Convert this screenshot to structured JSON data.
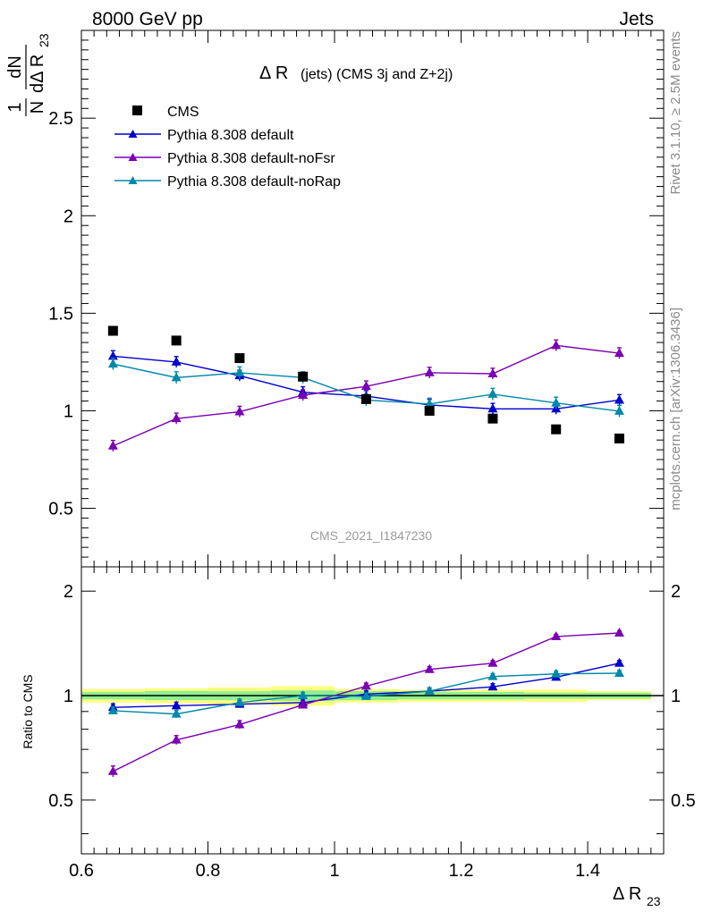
{
  "header": {
    "left": "8000 GeV pp",
    "right": "Jets"
  },
  "side_labels": {
    "rivet": "Rivet 3.1.10, ≥ 2.5M events",
    "mcplots": "mcplots.cern.ch [arXiv:1306.3436]"
  },
  "chart_data": [
    {
      "type": "line",
      "title_main": "Δ R",
      "title_rest": "(jets) (CMS 3j and Z+2j)",
      "ylabel_top": "1",
      "ylabel_dN": "dN",
      "ylabel_N": "N",
      "ylabel_bottom": "dΔ R",
      "ylabel_sub": "23",
      "watermark": "CMS_2021_I1847230",
      "ylim": [
        0.2,
        2.95
      ],
      "yticks": [
        0.5,
        1,
        1.5,
        2,
        2.5
      ],
      "ytick_labels": [
        "0.5",
        "1",
        "1.5",
        "2",
        "2.5"
      ],
      "legend_position": "top-left",
      "x": [
        0.65,
        0.75,
        0.85,
        0.95,
        1.05,
        1.15,
        1.25,
        1.35,
        1.45
      ],
      "data": {
        "name": "CMS",
        "color": "#000000",
        "values": [
          1.41,
          1.36,
          1.27,
          1.175,
          1.06,
          1.0,
          0.96,
          0.905,
          0.858
        ]
      },
      "series": [
        {
          "name": "Pythia 8.308 default",
          "color": "#0000cc",
          "values": [
            1.28,
            1.25,
            1.18,
            1.095,
            1.075,
            1.03,
            1.01,
            1.01,
            1.055
          ],
          "err": 0.028
        },
        {
          "name": "Pythia 8.308 default-noFsr",
          "color": "#7a00b0",
          "values": [
            0.82,
            0.96,
            0.995,
            1.08,
            1.125,
            1.195,
            1.19,
            1.335,
            1.295
          ],
          "err": 0.028
        },
        {
          "name": "Pythia 8.308 default-noRap",
          "color": "#0088aa",
          "values": [
            1.24,
            1.17,
            1.195,
            1.17,
            1.055,
            1.035,
            1.085,
            1.04,
            0.998
          ],
          "err": 0.03
        }
      ]
    },
    {
      "type": "line",
      "ylabel": "Ratio to CMS",
      "xlabel_main": "Δ R",
      "xlabel_sub": "23",
      "xlim": [
        0.6,
        1.52
      ],
      "xticks": [
        0.6,
        0.8,
        1.0,
        1.2,
        1.4
      ],
      "xtick_labels": [
        "0.6",
        "0.8",
        "1",
        "1.2",
        "1.4"
      ],
      "ylim": [
        0.35,
        2.35
      ],
      "yticks": [
        0.5,
        1,
        2
      ],
      "ytick_labels": [
        "0.5",
        "1",
        "2"
      ],
      "x": [
        0.65,
        0.75,
        0.85,
        0.95,
        1.05,
        1.15,
        1.25,
        1.35,
        1.45
      ],
      "band_bins": [
        0.6,
        0.7,
        0.8,
        0.9,
        1.0,
        1.1,
        1.2,
        1.3,
        1.4,
        1.5
      ],
      "band_inner": [
        0.025,
        0.03,
        0.03,
        0.035,
        0.03,
        0.025,
        0.025,
        0.02,
        0.02
      ],
      "band_outer": [
        0.045,
        0.05,
        0.055,
        0.065,
        0.045,
        0.04,
        0.04,
        0.04,
        0.03
      ],
      "series": [
        {
          "name": "Pythia 8.308 default",
          "color": "#0000cc",
          "values": [
            0.925,
            0.935,
            0.945,
            0.955,
            1.01,
            1.03,
            1.06,
            1.13,
            1.24
          ],
          "err": 0.022
        },
        {
          "name": "Pythia 8.308 default-noFsr",
          "color": "#7a00b0",
          "values": [
            0.605,
            0.745,
            0.825,
            0.94,
            1.065,
            1.19,
            1.24,
            1.48,
            1.515
          ],
          "err": 0.022
        },
        {
          "name": "Pythia 8.308 default-noRap",
          "color": "#0088aa",
          "values": [
            0.905,
            0.885,
            0.955,
            1.0,
            0.995,
            1.03,
            1.135,
            1.155,
            1.16
          ],
          "err": 0.022
        }
      ]
    }
  ]
}
